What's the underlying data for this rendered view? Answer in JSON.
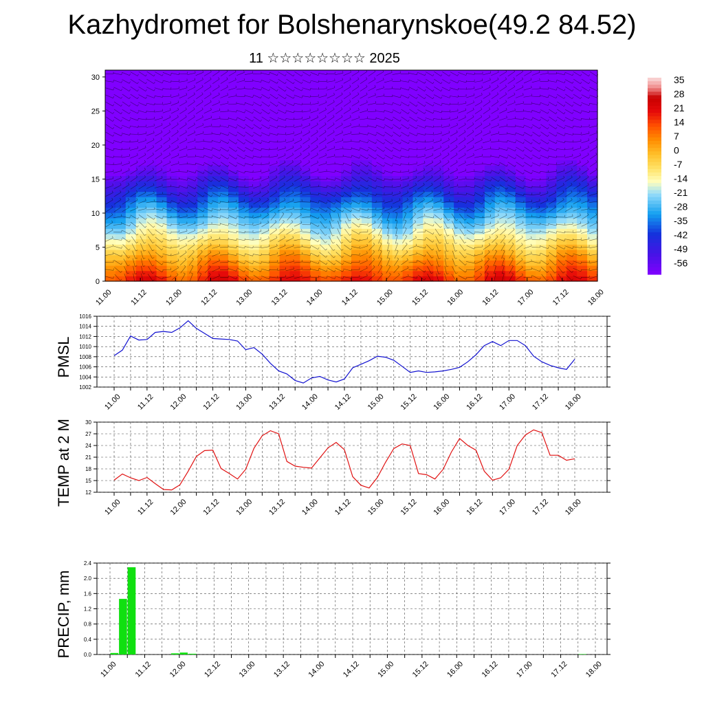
{
  "header": {
    "title": "Kazhydromet for Bolshenarynskoe(49.2 84.52)",
    "subtitle": "11 ☆☆☆☆☆☆☆☆ 2025"
  },
  "time_labels": [
    "11.00",
    "11.12",
    "12.00",
    "12.12",
    "13.00",
    "13.12",
    "14.00",
    "14.12",
    "15.00",
    "15.12",
    "16.00",
    "16.12",
    "17.00",
    "17.12",
    "18.00"
  ],
  "colors": {
    "pressure_line": "#1010d0",
    "temp_line": "#e01010",
    "precip_bar": "#10e010"
  },
  "chart_data": [
    {
      "type": "heatmap",
      "name": "cross-section",
      "x": [
        "11.00",
        "11.12",
        "12.00",
        "12.12",
        "13.00",
        "13.12",
        "14.00",
        "14.12",
        "15.00",
        "15.12",
        "16.00",
        "16.12",
        "17.00",
        "17.12",
        "18.00"
      ],
      "yticks": [
        0,
        5,
        10,
        15,
        20,
        25,
        30
      ],
      "ylim": [
        0,
        31
      ],
      "colorbar_ticks": [
        "35",
        "28",
        "21",
        "14",
        "7",
        "0",
        "-7",
        "-14",
        "-21",
        "-28",
        "-35",
        "-42",
        "-49",
        "-56"
      ],
      "colorbar_range": [
        -60,
        38
      ],
      "overlay": "wind barbs"
    },
    {
      "type": "line",
      "ylabel": "PMSL",
      "ylim": [
        1002,
        1016
      ],
      "yticks": [
        "1002",
        "1004",
        "1006",
        "1008",
        "1010",
        "1012",
        "1014",
        "1016"
      ],
      "x_hours": [
        0,
        3,
        6,
        9,
        12,
        15,
        18,
        21,
        24,
        27,
        30,
        33,
        36,
        39,
        42,
        45,
        48,
        51,
        54,
        57,
        60,
        63,
        66,
        69,
        72,
        75,
        78,
        81,
        84,
        87,
        90,
        93,
        96,
        99,
        102,
        105,
        108,
        111,
        114,
        117,
        120,
        123,
        126,
        129,
        132,
        135,
        138,
        141,
        144,
        147,
        150,
        153,
        156,
        159,
        162,
        165,
        168
      ],
      "values": [
        1008.2,
        1009.3,
        1012.1,
        1011.3,
        1011.4,
        1012.8,
        1013.0,
        1012.8,
        1013.7,
        1015.1,
        1013.6,
        1012.6,
        1011.6,
        1011.5,
        1011.4,
        1011.1,
        1009.4,
        1009.8,
        1008.5,
        1006.7,
        1005.2,
        1004.6,
        1003.3,
        1002.8,
        1003.8,
        1004.1,
        1003.4,
        1003.0,
        1003.6,
        1005.8,
        1006.5,
        1007.2,
        1008.1,
        1007.9,
        1007.3,
        1006.1,
        1004.9,
        1005.2,
        1004.9,
        1005.0,
        1005.2,
        1005.5,
        1005.9,
        1007.0,
        1008.4,
        1010.2,
        1011.0,
        1010.2,
        1011.2,
        1011.2,
        1010.2,
        1008.1,
        1007.0,
        1006.3,
        1005.8,
        1005.5,
        1007.5
      ]
    },
    {
      "type": "line",
      "ylabel": "TEMP at 2 M",
      "ylim": [
        12,
        30
      ],
      "yticks": [
        "12",
        "15",
        "18",
        "21",
        "24",
        "27",
        "30"
      ],
      "x_hours": [
        0,
        3,
        6,
        9,
        12,
        15,
        18,
        21,
        24,
        27,
        30,
        33,
        36,
        39,
        42,
        45,
        48,
        51,
        54,
        57,
        60,
        63,
        66,
        69,
        72,
        75,
        78,
        81,
        84,
        87,
        90,
        93,
        96,
        99,
        102,
        105,
        108,
        111,
        114,
        117,
        120,
        123,
        126,
        129,
        132,
        135,
        138,
        141,
        144,
        147,
        150,
        153,
        156,
        159,
        162,
        165,
        168
      ],
      "values": [
        15.1,
        16.7,
        15.7,
        15.0,
        15.8,
        14.2,
        12.7,
        12.6,
        13.9,
        17.4,
        21.2,
        22.7,
        22.8,
        18.1,
        16.8,
        15.4,
        17.9,
        23.3,
        26.5,
        27.8,
        27.0,
        19.9,
        18.7,
        18.4,
        18.2,
        20.8,
        23.4,
        24.8,
        22.9,
        16.0,
        13.8,
        13.1,
        15.8,
        19.7,
        23.2,
        24.4,
        24.0,
        16.8,
        16.5,
        15.4,
        17.9,
        22.3,
        25.8,
        24.0,
        22.8,
        17.4,
        15.1,
        15.7,
        17.9,
        24.0,
        26.7,
        28.0,
        27.3,
        21.5,
        21.5,
        20.2,
        20.6
      ]
    },
    {
      "type": "bar",
      "ylabel": "PRECIP, mm",
      "ylim": [
        0,
        2.4
      ],
      "yticks": [
        "0.0",
        "0.4",
        "0.8",
        "1.2",
        "1.6",
        "2.0",
        "2.4"
      ],
      "x_hours": [
        0,
        3,
        6,
        9,
        12,
        15,
        18,
        21,
        24,
        27,
        30,
        33,
        36,
        39,
        42,
        45,
        48,
        51,
        54,
        57,
        60,
        63,
        66,
        69,
        72,
        75,
        78,
        81,
        84,
        87,
        90,
        93,
        96,
        99,
        102,
        105,
        108,
        111,
        114,
        117,
        120,
        123,
        126,
        129,
        132,
        135,
        138,
        141,
        144,
        147,
        150,
        153,
        156,
        159,
        162,
        165
      ],
      "values": [
        0.04,
        1.46,
        2.29,
        0,
        0,
        0,
        0,
        0.03,
        0.05,
        0.02,
        0,
        0,
        0,
        0,
        0,
        0,
        0,
        0,
        0,
        0,
        0,
        0,
        0,
        0,
        0,
        0,
        0,
        0,
        0,
        0,
        0,
        0,
        0,
        0,
        0,
        0,
        0,
        0,
        0,
        0,
        0,
        0,
        0,
        0,
        0,
        0,
        0,
        0,
        0,
        0,
        0,
        0,
        0,
        0,
        0.01,
        0
      ]
    }
  ]
}
